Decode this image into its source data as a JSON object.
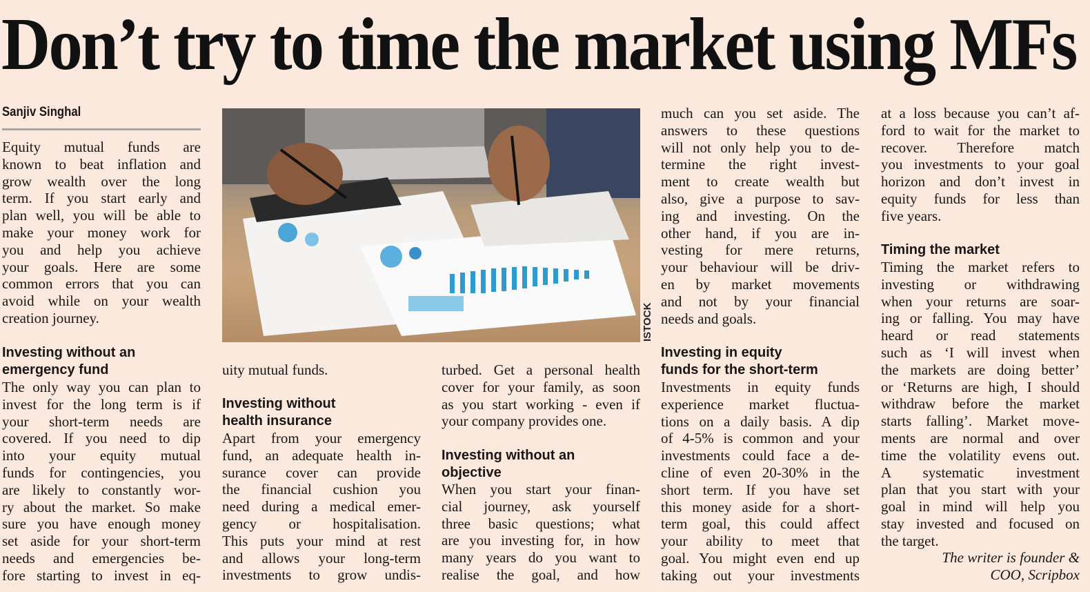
{
  "headline": "Don’t try to time the market using MFs",
  "byline": "Sanjiv Singhal",
  "photo_credit": "ISTOCK",
  "columns": [
    {
      "blocks": [
        {
          "type": "para",
          "lines": [
            "Equity mutual funds are",
            "known to beat inflation and",
            "grow wealth over the long",
            "term. If you start early and",
            "plan well, you will be able to",
            "make your money work for",
            "you and help you achieve",
            "your goals. Here are some",
            "common errors that you can",
            "avoid while on your wealth",
            "creation journey."
          ],
          "end": true
        },
        {
          "type": "heading",
          "lines": [
            "Investing without an",
            "emergency fund"
          ]
        },
        {
          "type": "para",
          "lines": [
            "The only way you can plan to",
            "invest for the long term is if",
            "your short-term needs are",
            "covered. If you need to dip",
            "into your equity mutual",
            "funds for contingencies, you",
            "are likely to constantly wor-",
            "ry about the market. So make",
            "sure you have enough money",
            "set aside for your short-term",
            "needs and emergencies be-",
            "fore starting to invest in eq-"
          ],
          "end": false
        }
      ]
    },
    {
      "blocks": [
        {
          "type": "para",
          "lines": [
            "uity mutual funds."
          ],
          "end": true
        },
        {
          "type": "heading",
          "lines": [
            "Investing without",
            "health insurance"
          ]
        },
        {
          "type": "para",
          "lines": [
            "Apart from your emergency",
            "fund, an adequate health in-",
            "surance cover can provide",
            "the financial cushion you",
            "need during a medical emer-",
            "gency or hospitalisation.",
            "This puts your mind at rest",
            "and allows your long-term",
            "investments to grow undis-"
          ],
          "end": false
        }
      ]
    },
    {
      "blocks": [
        {
          "type": "para",
          "lines": [
            "turbed. Get a personal health",
            "cover for your family, as soon",
            "as you start working - even if",
            "your company provides one."
          ],
          "end": true
        },
        {
          "type": "heading",
          "lines": [
            "Investing without an",
            "objective"
          ]
        },
        {
          "type": "para",
          "lines": [
            "When you start your finan-",
            "cial journey, ask yourself",
            "three basic questions; what",
            "are you investing for, in how",
            "many years do you want to",
            "realise the goal, and how"
          ],
          "end": false
        }
      ]
    },
    {
      "blocks": [
        {
          "type": "para",
          "lines": [
            "much can you set aside. The",
            "answers to these questions",
            "will not only help you to de-",
            "termine the right invest-",
            "ment to create wealth but",
            "also, give a purpose to sav-",
            "ing and investing. On the",
            "other hand, if you are in-",
            "vesting for mere returns,",
            "your behaviour will be driv-",
            "en by market movements",
            "and not by your financial",
            "needs and goals."
          ],
          "end": true
        },
        {
          "type": "heading",
          "lines": [
            "Investing in equity",
            "funds for the short-term"
          ]
        },
        {
          "type": "para",
          "lines": [
            "Investments in equity funds",
            "experience market fluctua-",
            "tions on a daily basis. A dip",
            "of 4-5% is common and your",
            "investments could face a de-",
            "cline of even 20-30% in the",
            "short term. If you have set",
            "this money aside for a short-",
            "term goal, this could affect",
            "your ability to meet that",
            "goal. You might even end up",
            "taking out your investments"
          ],
          "end": false
        }
      ]
    },
    {
      "blocks": [
        {
          "type": "para",
          "lines": [
            "at a loss because you can’t af-",
            "ford to wait for the market to",
            "recover. Therefore match",
            "you investments to your goal",
            "horizon and don’t invest in",
            "equity funds for less than",
            "five years."
          ],
          "end": true
        },
        {
          "type": "heading",
          "lines": [
            "Timing the market"
          ]
        },
        {
          "type": "para",
          "lines": [
            "Timing the market refers to",
            "investing or withdrawing",
            "when your returns are soar-",
            "ing or falling. You may have",
            "heard or read statements",
            "such as ‘I will invest when",
            "the markets are doing better’",
            "or ‘Returns are high, I should",
            "withdraw before the market",
            "starts falling’. Market move-",
            "ments are normal and over",
            "time the volatility evens out.",
            "A systematic investment",
            "plan that you start with your",
            "goal in mind will help you",
            "stay invested and focused on",
            "the target."
          ],
          "end": true
        },
        {
          "type": "credit",
          "lines": [
            "The writer is founder &",
            "COO, Scripbox"
          ]
        }
      ]
    }
  ]
}
